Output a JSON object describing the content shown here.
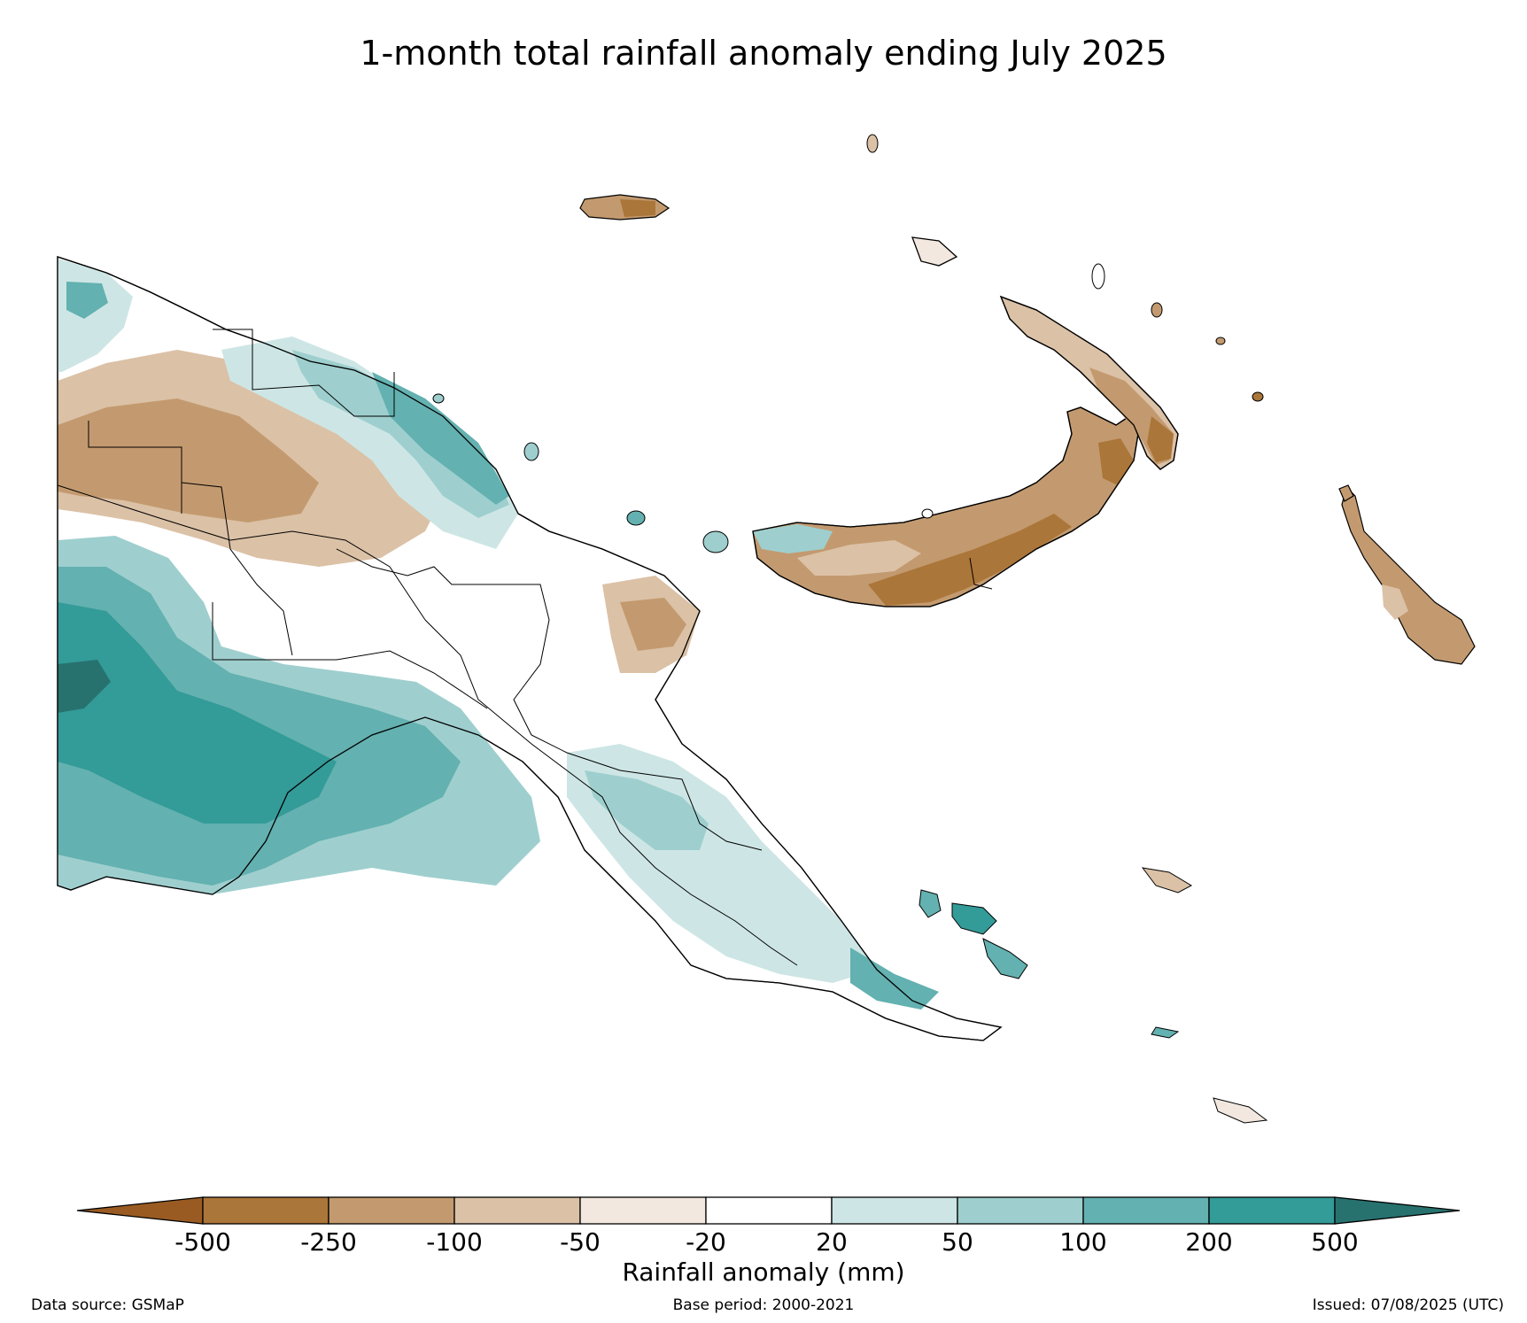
{
  "title": "1-month total rainfall anomaly ending July 2025",
  "colorbar": {
    "label": "Rainfall anomaly (mm)",
    "ticks": [
      "-500",
      "-250",
      "-100",
      "-50",
      "-20",
      "20",
      "50",
      "100",
      "200",
      "500"
    ],
    "colors": [
      "#9a5b22",
      "#ab7639",
      "#c39a6f",
      "#dbc1a6",
      "#f2e8df",
      "#ffffff",
      "#cde6e5",
      "#9ecfce",
      "#63b1b0",
      "#339b98",
      "#27726f"
    ]
  },
  "footer": {
    "source": "Data source: GSMaP",
    "base_period": "Base period: 2000-2021",
    "issued": "Issued: 07/08/2025 (UTC)"
  }
}
